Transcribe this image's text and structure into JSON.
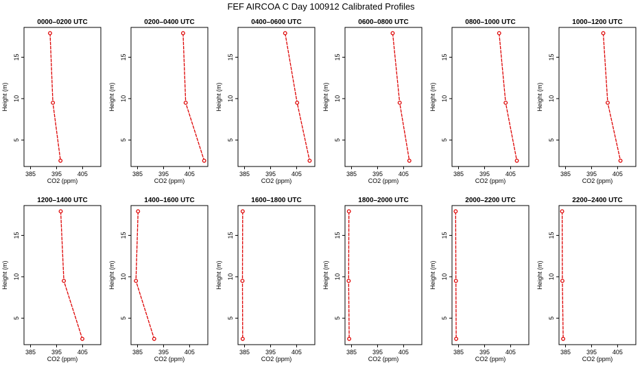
{
  "figure": {
    "title": "FEF AIRCOA C  Day 100912  Calibrated Profiles"
  },
  "colors": {
    "series": "#dd0000",
    "frame": "#000000",
    "background": "#ffffff"
  },
  "chart_data": [
    {
      "type": "line",
      "title": "0000–0200 UTC",
      "xlabel": "CO2 (ppm)",
      "ylabel": "Height (m)",
      "xlim": [
        382.5,
        412
      ],
      "ylim": [
        1.8,
        18.6
      ],
      "xticks": [
        385,
        395,
        405
      ],
      "yticks": [
        5,
        10,
        15
      ],
      "x": [
        392.5,
        393.6,
        396.5
      ],
      "y": [
        17.9,
        9.5,
        2.5
      ]
    },
    {
      "type": "line",
      "title": "0200–0400 UTC",
      "xlabel": "CO2 (ppm)",
      "ylabel": "Height (m)",
      "xlim": [
        382.5,
        412
      ],
      "ylim": [
        1.8,
        18.6
      ],
      "xticks": [
        385,
        395,
        405
      ],
      "yticks": [
        5,
        10,
        15
      ],
      "x": [
        402.5,
        403.5,
        410.6
      ],
      "y": [
        17.9,
        9.5,
        2.5
      ]
    },
    {
      "type": "line",
      "title": "0400–0600 UTC",
      "xlabel": "CO2 (ppm)",
      "ylabel": "Height (m)",
      "xlim": [
        382.5,
        412
      ],
      "ylim": [
        1.8,
        18.6
      ],
      "xticks": [
        385,
        395,
        405
      ],
      "yticks": [
        5,
        10,
        15
      ],
      "x": [
        400.6,
        405.2,
        410.0
      ],
      "y": [
        17.9,
        9.5,
        2.5
      ]
    },
    {
      "type": "line",
      "title": "0600–0800 UTC",
      "xlabel": "CO2 (ppm)",
      "ylabel": "Height (m)",
      "xlim": [
        382.5,
        412
      ],
      "ylim": [
        1.8,
        18.6
      ],
      "xticks": [
        385,
        395,
        405
      ],
      "yticks": [
        5,
        10,
        15
      ],
      "x": [
        400.8,
        403.5,
        407.2
      ],
      "y": [
        17.9,
        9.5,
        2.5
      ]
    },
    {
      "type": "line",
      "title": "0800–1000 UTC",
      "xlabel": "CO2 (ppm)",
      "ylabel": "Height (m)",
      "xlim": [
        382.5,
        412
      ],
      "ylim": [
        1.8,
        18.6
      ],
      "xticks": [
        385,
        395,
        405
      ],
      "yticks": [
        5,
        10,
        15
      ],
      "x": [
        400.6,
        403.1,
        407.4
      ],
      "y": [
        17.9,
        9.5,
        2.5
      ]
    },
    {
      "type": "line",
      "title": "1000–1200 UTC",
      "xlabel": "CO2 (ppm)",
      "ylabel": "Height (m)",
      "xlim": [
        382.5,
        412
      ],
      "ylim": [
        1.8,
        18.6
      ],
      "xticks": [
        385,
        395,
        405
      ],
      "yticks": [
        5,
        10,
        15
      ],
      "x": [
        399.5,
        401.2,
        406.1
      ],
      "y": [
        17.9,
        9.5,
        2.5
      ]
    },
    {
      "type": "line",
      "title": "1200–1400 UTC",
      "xlabel": "CO2 (ppm)",
      "ylabel": "Height (m)",
      "xlim": [
        382.5,
        412
      ],
      "ylim": [
        1.8,
        18.6
      ],
      "xticks": [
        385,
        395,
        405
      ],
      "yticks": [
        5,
        10,
        15
      ],
      "x": [
        396.6,
        397.8,
        404.9
      ],
      "y": [
        17.9,
        9.5,
        2.5
      ]
    },
    {
      "type": "line",
      "title": "1400–1600 UTC",
      "xlabel": "CO2 (ppm)",
      "ylabel": "Height (m)",
      "xlim": [
        382.5,
        412
      ],
      "ylim": [
        1.8,
        18.6
      ],
      "xticks": [
        385,
        395,
        405
      ],
      "yticks": [
        5,
        10,
        15
      ],
      "x": [
        385.2,
        384.4,
        391.4
      ],
      "y": [
        17.9,
        9.5,
        2.5
      ]
    },
    {
      "type": "line",
      "title": "1600–1800 UTC",
      "xlabel": "CO2 (ppm)",
      "ylabel": "Height (m)",
      "xlim": [
        382.5,
        412
      ],
      "ylim": [
        1.8,
        18.6
      ],
      "xticks": [
        385,
        395,
        405
      ],
      "yticks": [
        5,
        10,
        15
      ],
      "x": [
        384.3,
        384.2,
        384.3
      ],
      "y": [
        17.9,
        9.5,
        2.5
      ]
    },
    {
      "type": "line",
      "title": "1800–2000 UTC",
      "xlabel": "CO2 (ppm)",
      "ylabel": "Height (m)",
      "xlim": [
        382.5,
        412
      ],
      "ylim": [
        1.8,
        18.6
      ],
      "xticks": [
        385,
        395,
        405
      ],
      "yticks": [
        5,
        10,
        15
      ],
      "x": [
        384.0,
        383.9,
        384.1
      ],
      "y": [
        17.9,
        9.5,
        2.5
      ]
    },
    {
      "type": "line",
      "title": "2000–2200 UTC",
      "xlabel": "CO2 (ppm)",
      "ylabel": "Height (m)",
      "xlim": [
        382.5,
        412
      ],
      "ylim": [
        1.8,
        18.6
      ],
      "xticks": [
        385,
        395,
        405
      ],
      "yticks": [
        5,
        10,
        15
      ],
      "x": [
        383.9,
        384.0,
        384.1
      ],
      "y": [
        17.9,
        9.5,
        2.5
      ]
    },
    {
      "type": "line",
      "title": "2200–2400 UTC",
      "xlabel": "CO2 (ppm)",
      "ylabel": "Height (m)",
      "xlim": [
        382.5,
        412
      ],
      "ylim": [
        1.8,
        18.6
      ],
      "xticks": [
        385,
        395,
        405
      ],
      "yticks": [
        5,
        10,
        15
      ],
      "x": [
        383.7,
        383.8,
        384.1
      ],
      "y": [
        17.9,
        9.5,
        2.5
      ]
    }
  ]
}
